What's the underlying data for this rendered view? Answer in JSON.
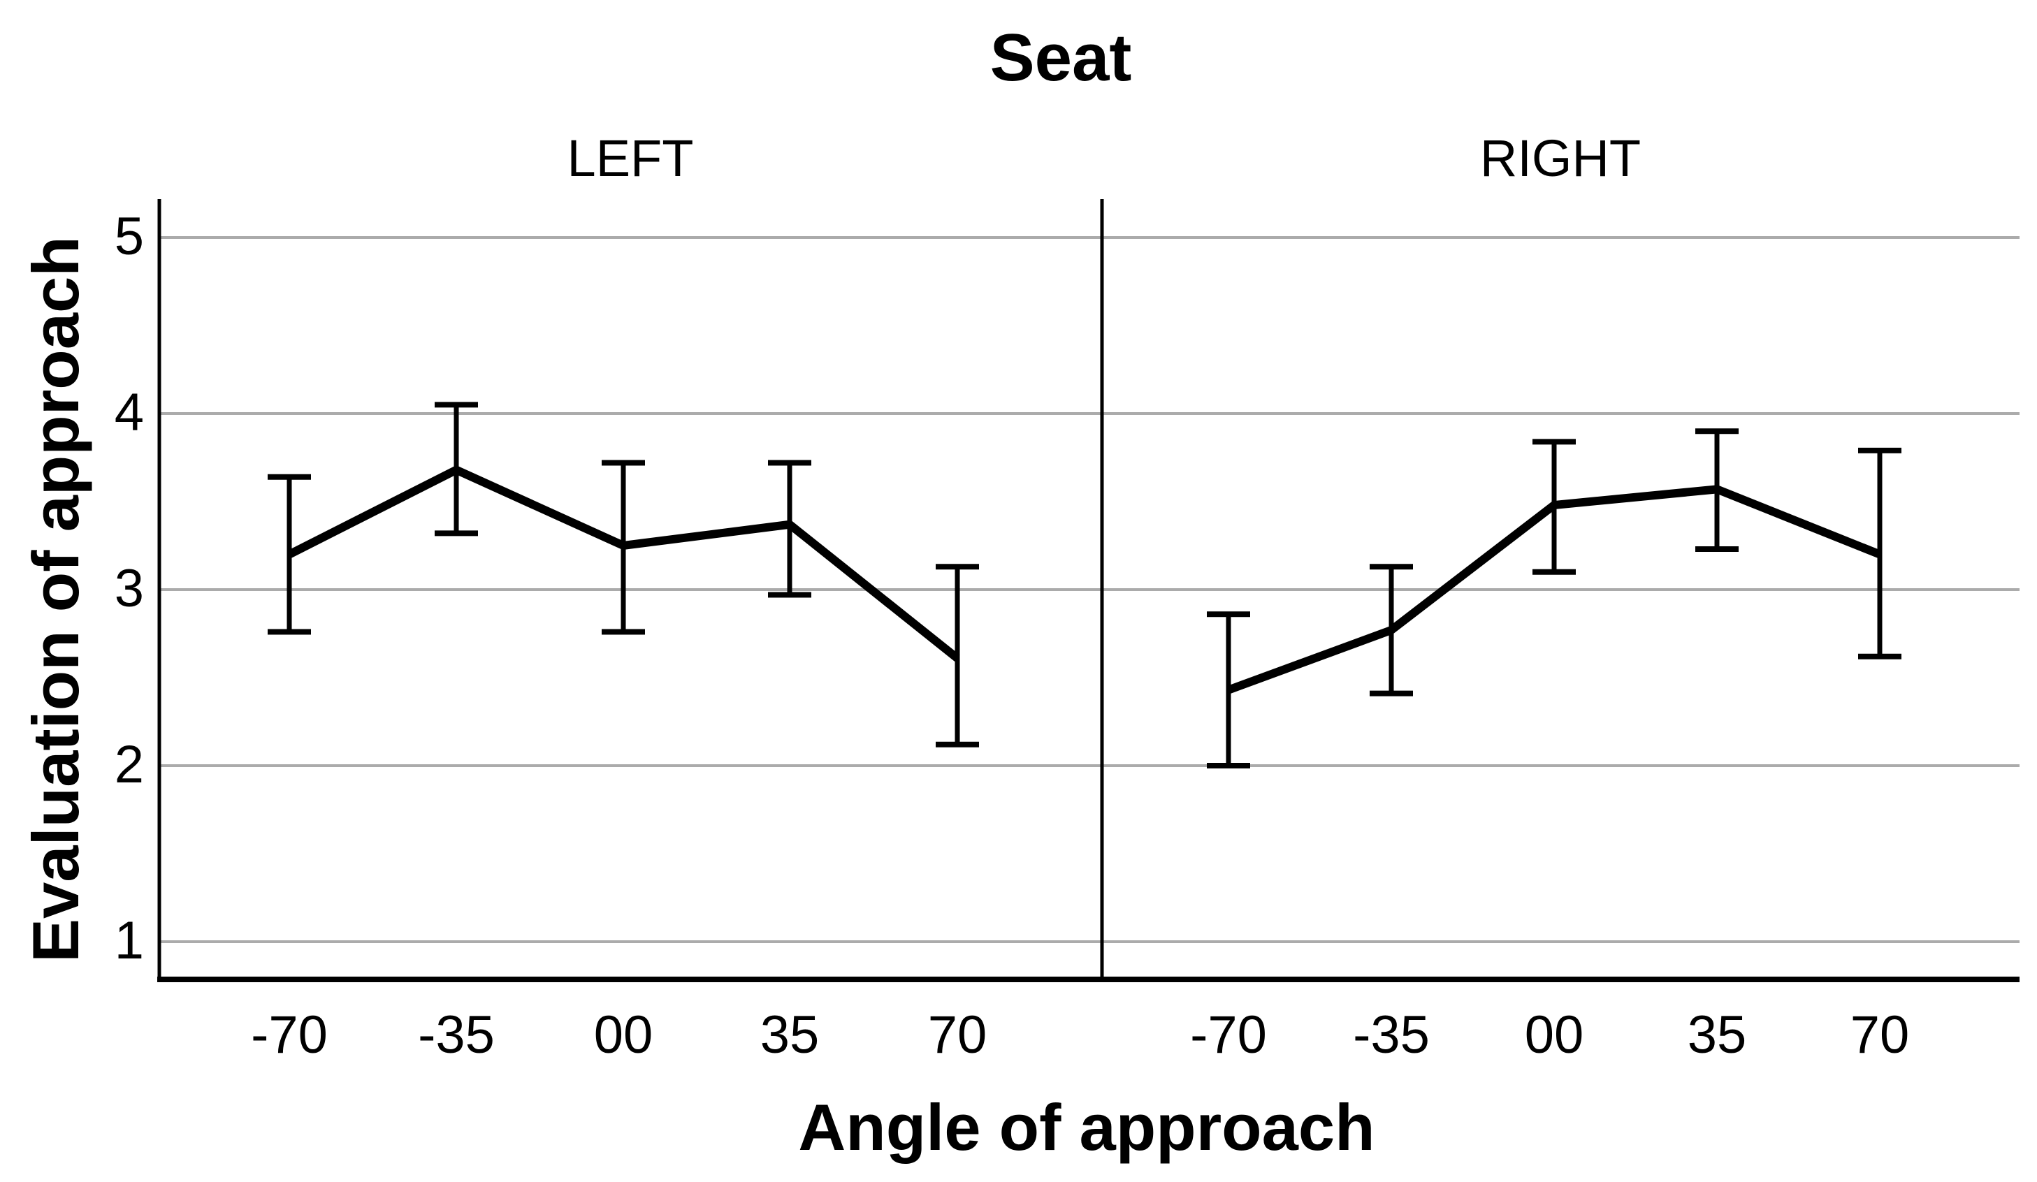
{
  "title": "Seat",
  "axes": {
    "x_label": "Angle of approach",
    "y_label": "Evaluation of approach",
    "y_tick_labels": [
      "5",
      "4",
      "3",
      "2",
      "1"
    ]
  },
  "chart_data": {
    "type": "line",
    "title": "Seat",
    "xlabel": "Angle of approach",
    "ylabel": "Evaluation of approach",
    "categories": [
      "-70",
      "-35",
      "00",
      "35",
      "70"
    ],
    "ylim": [
      1,
      5
    ],
    "yticks": [
      1,
      2,
      3,
      4,
      5
    ],
    "grid": "horizontal-only",
    "legend": "none",
    "error_bars": true,
    "panels": [
      {
        "label": "LEFT",
        "mean": [
          3.2,
          3.68,
          3.25,
          3.37,
          2.61
        ],
        "ci_upper": [
          3.64,
          4.05,
          3.72,
          3.72,
          3.13
        ],
        "ci_lower": [
          2.76,
          3.32,
          2.76,
          2.97,
          2.12
        ]
      },
      {
        "label": "RIGHT",
        "mean": [
          2.43,
          2.77,
          3.48,
          3.57,
          3.2
        ],
        "ci_upper": [
          2.86,
          3.13,
          3.84,
          3.9,
          3.79
        ],
        "ci_lower": [
          2.0,
          2.41,
          3.1,
          3.23,
          2.62
        ]
      }
    ],
    "colors": {
      "line": "#000000",
      "grid": "#ababab",
      "background": "#ffffff",
      "text": "#000000"
    }
  }
}
